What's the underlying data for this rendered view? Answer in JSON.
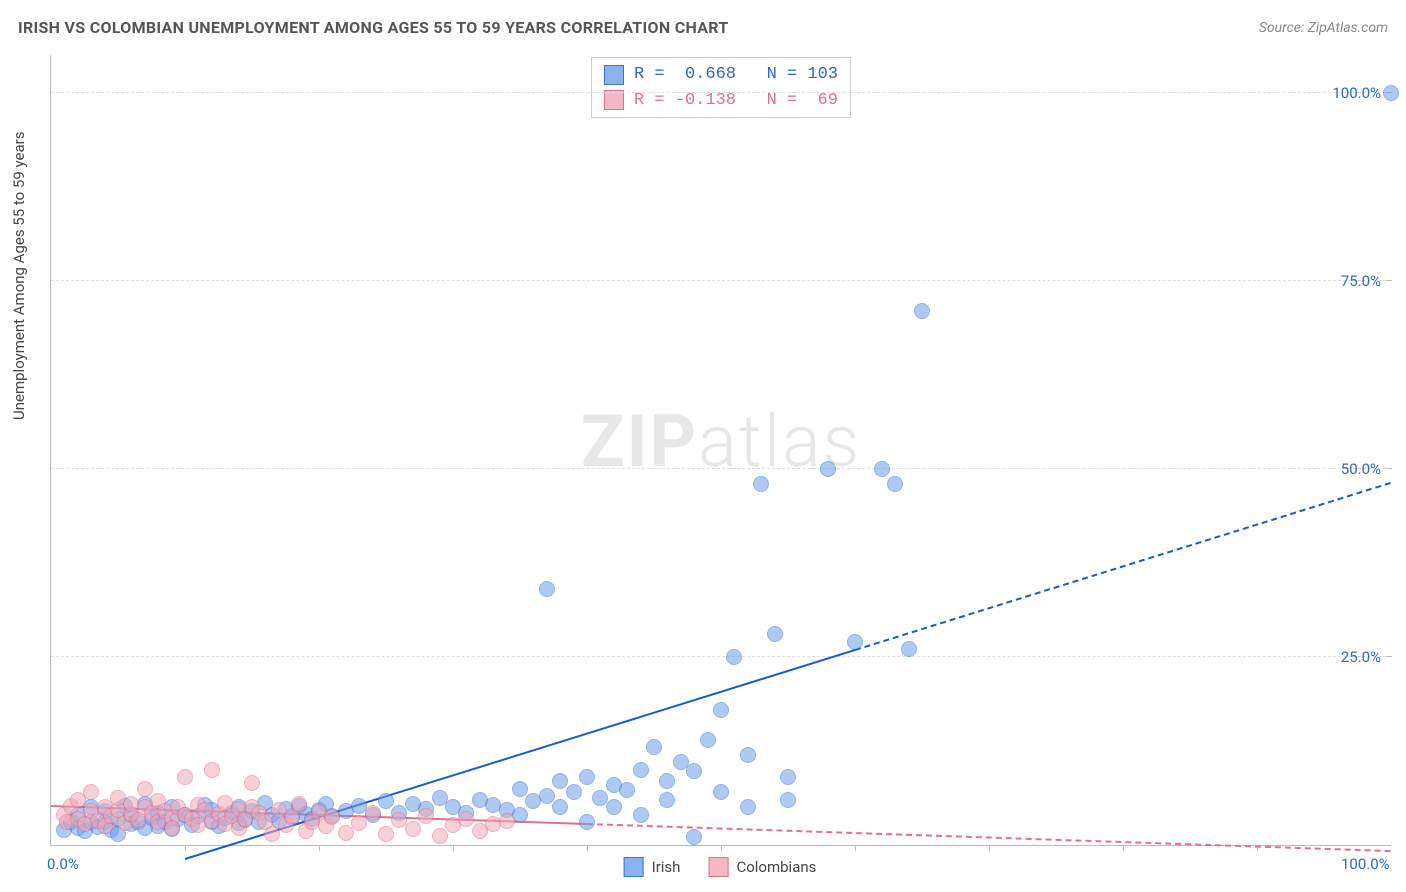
{
  "title": "IRISH VS COLOMBIAN UNEMPLOYMENT AMONG AGES 55 TO 59 YEARS CORRELATION CHART",
  "source": "Source: ZipAtlas.com",
  "watermark_bold": "ZIP",
  "watermark_light": "atlas",
  "chart": {
    "type": "scatter",
    "ylabel": "Unemployment Among Ages 55 to 59 years",
    "xlim": [
      0,
      100
    ],
    "ylim": [
      0,
      105
    ],
    "xtick_labels": [
      "0.0%",
      "100.0%"
    ],
    "xtick_positions": [
      0,
      100
    ],
    "xtick_minor_positions": [
      10,
      20,
      30,
      40,
      50,
      60,
      70,
      80,
      90
    ],
    "ytick_labels": [
      "25.0%",
      "50.0%",
      "75.0%",
      "100.0%"
    ],
    "ytick_positions": [
      25,
      50,
      75,
      100
    ],
    "grid_color": "#dddddd",
    "background_color": "#ffffff",
    "axis_color": "#bbbbbb",
    "label_fontsize": 15,
    "tick_fontsize": 15,
    "point_radius": 7,
    "point_opacity": 0.55,
    "series": [
      {
        "name": "Irish",
        "color": "#6f9fe8",
        "stroke": "#3b74cf",
        "tick_color": "#2b66d4",
        "R": "0.668",
        "N": "103",
        "trend": {
          "x1": 10,
          "y1": -2,
          "x2": 100,
          "y2": 48,
          "color": "#1858d6",
          "solid_until_x": 60
        },
        "points": [
          [
            1,
            2
          ],
          [
            1.5,
            3
          ],
          [
            2,
            2.2
          ],
          [
            2,
            4
          ],
          [
            2.5,
            1.8
          ],
          [
            3,
            3.1
          ],
          [
            3,
            5
          ],
          [
            3.5,
            2.4
          ],
          [
            4,
            3
          ],
          [
            4,
            4.5
          ],
          [
            4.5,
            2
          ],
          [
            5,
            3.5
          ],
          [
            5,
            1.5
          ],
          [
            5.5,
            5.2
          ],
          [
            6,
            2.8
          ],
          [
            6,
            4
          ],
          [
            6.5,
            3
          ],
          [
            7,
            2.2
          ],
          [
            7,
            5.5
          ],
          [
            7.5,
            3.6
          ],
          [
            8,
            4.2
          ],
          [
            8,
            2.5
          ],
          [
            8.5,
            3
          ],
          [
            9,
            5
          ],
          [
            9,
            2.1
          ],
          [
            9.5,
            3.4
          ],
          [
            10,
            4
          ],
          [
            10.5,
            2.7
          ],
          [
            11,
            3.9
          ],
          [
            11.5,
            5.3
          ],
          [
            12,
            3
          ],
          [
            12,
            4.7
          ],
          [
            12.5,
            2.5
          ],
          [
            13,
            3.6
          ],
          [
            13.5,
            4.2
          ],
          [
            14,
            2.9
          ],
          [
            14,
            5.1
          ],
          [
            14.5,
            3.3
          ],
          [
            15,
            4.5
          ],
          [
            15.5,
            3
          ],
          [
            16,
            5.6
          ],
          [
            16.5,
            4
          ],
          [
            17,
            3.2
          ],
          [
            17.5,
            4.8
          ],
          [
            18,
            3.6
          ],
          [
            18.5,
            5.2
          ],
          [
            19,
            4.1
          ],
          [
            19.5,
            3.5
          ],
          [
            20,
            4.7
          ],
          [
            20.5,
            5.4
          ],
          [
            21,
            3.8
          ],
          [
            22,
            4.5
          ],
          [
            23,
            5.2
          ],
          [
            24,
            4
          ],
          [
            25,
            5.8
          ],
          [
            26,
            4.3
          ],
          [
            27,
            5.5
          ],
          [
            28,
            4.8
          ],
          [
            29,
            6.2
          ],
          [
            30,
            5
          ],
          [
            31,
            4.2
          ],
          [
            32,
            6
          ],
          [
            33,
            5.3
          ],
          [
            34,
            4.6
          ],
          [
            35,
            7.5
          ],
          [
            36,
            5.8
          ],
          [
            37,
            6.5
          ],
          [
            38,
            8.5
          ],
          [
            38,
            5
          ],
          [
            39,
            7
          ],
          [
            40,
            9
          ],
          [
            41,
            6.2
          ],
          [
            42,
            8
          ],
          [
            43,
            7.3
          ],
          [
            44,
            10
          ],
          [
            45,
            13
          ],
          [
            46,
            8.5
          ],
          [
            47,
            11
          ],
          [
            48,
            9.8
          ],
          [
            49,
            14
          ],
          [
            37,
            34
          ],
          [
            50,
            18
          ],
          [
            51,
            25
          ],
          [
            52,
            12
          ],
          [
            53,
            48
          ],
          [
            54,
            28
          ],
          [
            55,
            9
          ],
          [
            58,
            50
          ],
          [
            60,
            27
          ],
          [
            62,
            50
          ],
          [
            63,
            48
          ],
          [
            64,
            26
          ],
          [
            65,
            71
          ],
          [
            48,
            1
          ],
          [
            40,
            3
          ],
          [
            42,
            5
          ],
          [
            44,
            4
          ],
          [
            46,
            6
          ],
          [
            50,
            7
          ],
          [
            52,
            5
          ],
          [
            55,
            6
          ],
          [
            100,
            100
          ],
          [
            35,
            4
          ]
        ]
      },
      {
        "name": "Colombians",
        "color": "#f2a8b8",
        "stroke": "#e46e8b",
        "tick_color": "#e46e8b",
        "R": "-0.138",
        "N": "69",
        "trend": {
          "x1": 0,
          "y1": 5,
          "x2": 100,
          "y2": -1,
          "color": "#e46e8b",
          "solid_until_x": 40
        },
        "points": [
          [
            1,
            4
          ],
          [
            1.2,
            3
          ],
          [
            1.5,
            5.2
          ],
          [
            2,
            3.5
          ],
          [
            2,
            6
          ],
          [
            2.5,
            2.8
          ],
          [
            3,
            4.5
          ],
          [
            3,
            7.1
          ],
          [
            3.5,
            3.2
          ],
          [
            4,
            5
          ],
          [
            4,
            2.5
          ],
          [
            4.5,
            3.8
          ],
          [
            5,
            4.6
          ],
          [
            5,
            6.3
          ],
          [
            5.5,
            2.9
          ],
          [
            6,
            4.1
          ],
          [
            6,
            5.5
          ],
          [
            6.5,
            3.3
          ],
          [
            7,
            5
          ],
          [
            7,
            7.5
          ],
          [
            7.5,
            4.2
          ],
          [
            8,
            3.1
          ],
          [
            8,
            5.8
          ],
          [
            8.5,
            4.5
          ],
          [
            9,
            3.6
          ],
          [
            9,
            2.2
          ],
          [
            9.5,
            5.1
          ],
          [
            10,
            4
          ],
          [
            10,
            9
          ],
          [
            10.5,
            3.4
          ],
          [
            11,
            5.3
          ],
          [
            11,
            2.6
          ],
          [
            11.5,
            4.7
          ],
          [
            12,
            3.2
          ],
          [
            12,
            10
          ],
          [
            12.5,
            4.1
          ],
          [
            13,
            2.8
          ],
          [
            13,
            5.6
          ],
          [
            13.5,
            3.9
          ],
          [
            14,
            4.8
          ],
          [
            14,
            2.3
          ],
          [
            14.5,
            3.5
          ],
          [
            15,
            5
          ],
          [
            15,
            8.2
          ],
          [
            15.5,
            4.3
          ],
          [
            16,
            3
          ],
          [
            16.5,
            1.5
          ],
          [
            17,
            4.6
          ],
          [
            17.5,
            2.7
          ],
          [
            18,
            3.8
          ],
          [
            18.5,
            5.4
          ],
          [
            19,
            1.8
          ],
          [
            19.5,
            3.1
          ],
          [
            20,
            4.4
          ],
          [
            20.5,
            2.5
          ],
          [
            21,
            3.7
          ],
          [
            22,
            1.6
          ],
          [
            23,
            2.9
          ],
          [
            24,
            4.2
          ],
          [
            25,
            1.4
          ],
          [
            26,
            3.3
          ],
          [
            27,
            2.1
          ],
          [
            28,
            3.8
          ],
          [
            29,
            1.2
          ],
          [
            30,
            2.6
          ],
          [
            31,
            3.5
          ],
          [
            32,
            1.9
          ],
          [
            33,
            2.8
          ],
          [
            34,
            3.2
          ]
        ]
      }
    ],
    "legend_bottom": [
      {
        "label": "Irish",
        "color": "#6f9fe8cc",
        "stroke": "#3b74cf"
      },
      {
        "label": "Colombians",
        "color": "#f2a8b8cc",
        "stroke": "#e46e8b"
      }
    ]
  }
}
